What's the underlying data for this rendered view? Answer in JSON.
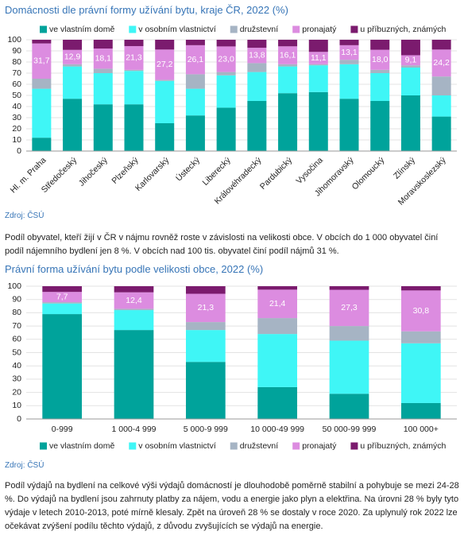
{
  "chart_data": [
    {
      "type": "bar",
      "stacked": true,
      "title": "Domácnosti dle právní formy užívání bytu, kraje ČR, 2022 (%)",
      "categories": [
        "Hl. m. Praha",
        "Středočeský",
        "Jihočeský",
        "Plzeňský",
        "Karlovarský",
        "Ústecký",
        "Liberecký",
        "Královéhradecký",
        "Pardubický",
        "Vysočina",
        "Jihomoravský",
        "Olomoucký",
        "Zlínský",
        "Moravskoslezský"
      ],
      "series": [
        {
          "name": "ve vlastním domě",
          "color": "#00a39b",
          "values": [
            12,
            47,
            42,
            42,
            25,
            32,
            39,
            45,
            52,
            53,
            47,
            45,
            50,
            31
          ]
        },
        {
          "name": "v osobním vlastnictví",
          "color": "#3ff6f6",
          "values": [
            44,
            29,
            28,
            30,
            38,
            24,
            29,
            26,
            24,
            24,
            31,
            25,
            25,
            19
          ]
        },
        {
          "name": "družstevní",
          "color": "#a6b4c4",
          "values": [
            9,
            2,
            4,
            1,
            1,
            13,
            3,
            8,
            2,
            1,
            4,
            3,
            2,
            17
          ]
        },
        {
          "name": "pronajatý",
          "color": "#dc8ce0",
          "values": [
            31.7,
            12.9,
            18.1,
            21.3,
            27.2,
            26.1,
            23.0,
            13.8,
            16.1,
            11.1,
            13.1,
            18.0,
            9.1,
            24.2
          ],
          "value_labels": [
            "31,7",
            "12,9",
            "18,1",
            "21,3",
            "27,2",
            "26,1",
            "23,0",
            "13,8",
            "16,1",
            "11,1",
            "13,1",
            "18,0",
            "9,1",
            "24,2"
          ]
        },
        {
          "name": "u příbuzných, známých",
          "color": "#7b1b6e",
          "values": [
            3.3,
            9.1,
            7.9,
            5.7,
            8.8,
            4.9,
            6,
            7.2,
            5.9,
            10.9,
            4.9,
            9,
            13.9,
            8.8
          ]
        }
      ],
      "ylim": [
        0,
        100
      ],
      "yticks": [
        0,
        10,
        20,
        30,
        40,
        50,
        60,
        70,
        80,
        90,
        100
      ],
      "grid": true,
      "legend": "top"
    },
    {
      "type": "bar",
      "stacked": true,
      "title": "Právní forma užívání bytu podle velikosti obce, 2022 (%)",
      "categories": [
        "0-999",
        "1 000-4 999",
        "5 000-9 999",
        "10 000-49 999",
        "50 000-99 999",
        "100 000+"
      ],
      "series": [
        {
          "name": "ve vlastním domě",
          "color": "#00a39b",
          "values": [
            79,
            67,
            43,
            24,
            19,
            12
          ]
        },
        {
          "name": "v osobním vlastnictví",
          "color": "#3ff6f6",
          "values": [
            8,
            15,
            24,
            40,
            40,
            45
          ]
        },
        {
          "name": "družstevní",
          "color": "#a6b4c4",
          "values": [
            1,
            1,
            6,
            12,
            11,
            9
          ]
        },
        {
          "name": "pronajatý",
          "color": "#dc8ce0",
          "values": [
            7.7,
            12.4,
            21.3,
            21.4,
            27.3,
            30.8
          ],
          "value_labels": [
            "7,7",
            "12,4",
            "21,3",
            "21,4",
            "27,3",
            "30,8"
          ]
        },
        {
          "name": "u příbuzných, známých",
          "color": "#7b1b6e",
          "values": [
            4.3,
            4.6,
            5.7,
            2.6,
            2.7,
            3.2
          ]
        }
      ],
      "ylim": [
        0,
        100
      ],
      "yticks": [
        0,
        10,
        20,
        30,
        40,
        50,
        60,
        70,
        80,
        90,
        100
      ],
      "grid": true,
      "legend": "bottom"
    }
  ],
  "document": {
    "sources": [
      "Zdroj: ČSÚ",
      "Zdroj: ČSÚ"
    ],
    "paragraphs": [
      "Podíl obyvatel, kteří žijí v ČR v nájmu rovněž roste v závislosti na velikosti obce. V obcích do 1 000 obyvatel činí podíl nájemního bydlení jen 8 %. V obcích nad 100 tis. obyvatel činí podíl nájmů 31 %.",
      "Podíl výdajů na bydlení na celkové výši výdajů domácností je dlouhodobě poměrně stabilní a pohybuje se mezi 24-28 %. Do výdajů na bydlení jsou zahrnuty platby za nájem, vodu a energie jako plyn a elektřina. Na úrovni 28 % byly tyto výdaje v letech 2010-2013, poté mírně klesaly. Zpět na úroveň 28 % se dostaly v roce 2020. Za uplynulý rok 2022 lze očekávat zvýšení podílu těchto výdajů, z důvodu zvyšujících se výdajů na energie."
    ]
  }
}
